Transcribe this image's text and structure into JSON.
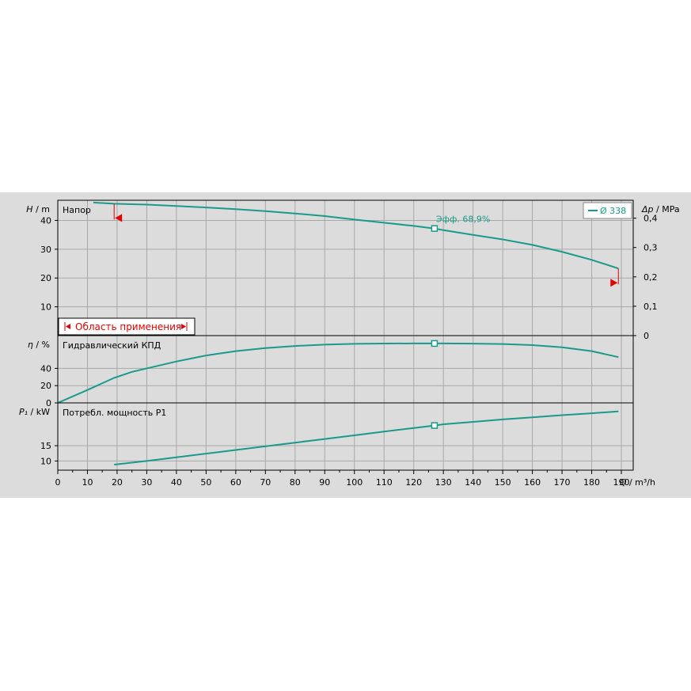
{
  "chart_data": [
    {
      "type": "line",
      "panel": "head",
      "title": "Напор",
      "ylabel_var": "H",
      "ylabel_unit": "m",
      "y2label_var": "Δp",
      "y2label_unit": "MPa",
      "xlim": [
        0,
        194
      ],
      "ylim": [
        0,
        47
      ],
      "y2lim": [
        0,
        0.461
      ],
      "yticks": [
        10,
        20,
        30,
        40
      ],
      "y2ticks": [
        "0",
        "0,1",
        "0,2",
        "0,3",
        "0,4"
      ],
      "y2tick_values": [
        0,
        0.1,
        0.2,
        0.3,
        0.4
      ],
      "grid": true,
      "legend": {
        "position": "top-right",
        "entries": [
          "Ø 338"
        ]
      },
      "series": [
        {
          "name": "Ø 338",
          "x": [
            12,
            19,
            30,
            40,
            50,
            60,
            70,
            80,
            90,
            100,
            110,
            120,
            127,
            130,
            140,
            150,
            160,
            170,
            180,
            189
          ],
          "y": [
            46.2,
            45.8,
            45.5,
            45.0,
            44.5,
            43.9,
            43.2,
            42.4,
            41.5,
            40.3,
            39.2,
            38.1,
            37.2,
            36.6,
            35.0,
            33.4,
            31.5,
            29.1,
            26.3,
            23.3
          ]
        }
      ],
      "operating_point": {
        "x": 127,
        "y": 37.2,
        "label": "Эфф.  68,9%"
      },
      "application_range": {
        "label": "Область применения",
        "x_min": 19,
        "x_max": 189
      }
    },
    {
      "type": "line",
      "panel": "efficiency",
      "title": "Гидравлический КПД",
      "ylabel_var": "η",
      "ylabel_unit": "%",
      "xlim": [
        0,
        194
      ],
      "ylim": [
        0,
        78
      ],
      "yticks": [
        0,
        20,
        40
      ],
      "grid": true,
      "series": [
        {
          "name": "",
          "x": [
            0,
            10,
            19,
            25,
            40,
            50,
            60,
            70,
            80,
            90,
            100,
            110,
            120,
            127,
            130,
            140,
            150,
            160,
            170,
            180,
            189
          ],
          "y": [
            0,
            15,
            29,
            36,
            48,
            55,
            60,
            63.5,
            66,
            67.5,
            68.5,
            68.8,
            68.9,
            68.9,
            68.9,
            68.7,
            68.3,
            67.0,
            64.5,
            60,
            53
          ]
        }
      ],
      "operating_point": {
        "x": 127,
        "y": 68.9
      }
    },
    {
      "type": "line",
      "panel": "power",
      "title": "Потребл. мощность P1",
      "ylabel_var": "P₁",
      "ylabel_unit": "kW",
      "xlim": [
        0,
        194
      ],
      "ylim": [
        7,
        29
      ],
      "yticks": [
        10,
        15
      ],
      "grid": true,
      "series": [
        {
          "name": "",
          "x": [
            19,
            30,
            40,
            50,
            60,
            70,
            80,
            90,
            100,
            110,
            120,
            127,
            130,
            140,
            150,
            160,
            170,
            180,
            189
          ],
          "y": [
            8.8,
            10.0,
            11.2,
            12.4,
            13.6,
            14.8,
            16.0,
            17.2,
            18.4,
            19.6,
            20.8,
            21.6,
            22.0,
            22.8,
            23.6,
            24.3,
            25.0,
            25.6,
            26.2
          ]
        }
      ],
      "operating_point": {
        "x": 127,
        "y": 21.6
      }
    }
  ],
  "x_axis": {
    "label_var": "Q",
    "label_unit": "m³/h",
    "ticks": [
      0,
      10,
      20,
      30,
      40,
      50,
      60,
      70,
      80,
      90,
      100,
      110,
      120,
      130,
      140,
      150,
      160,
      170,
      180,
      190
    ]
  },
  "colors": {
    "curve": "#1a9a8a",
    "marker": "#e00000",
    "grid": "#a8a8a8",
    "panel_bg": "#dcdcdc",
    "axis": "#000000"
  }
}
